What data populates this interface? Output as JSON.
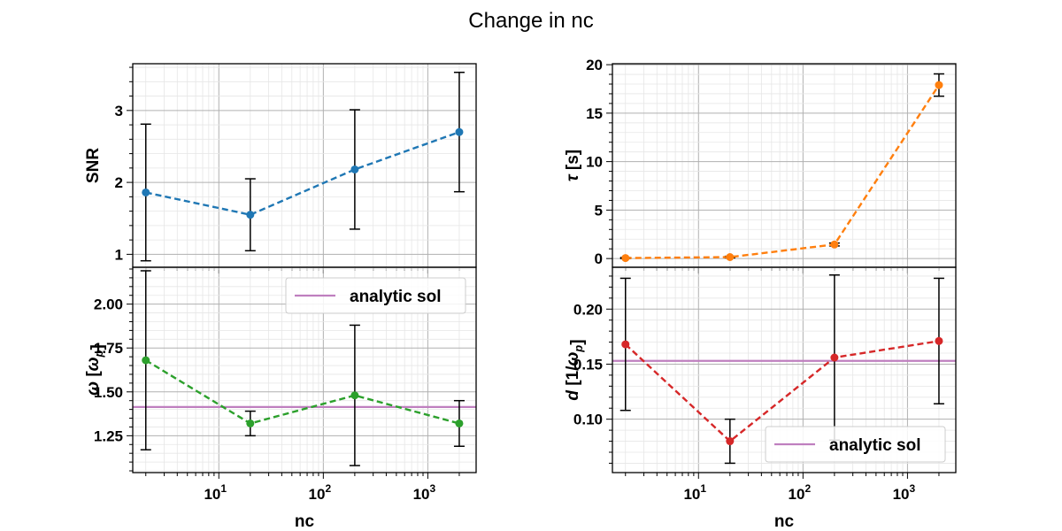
{
  "suptitle": "Change in nc",
  "chart_data": [
    {
      "type": "line",
      "id": "snr",
      "xlabel": "nc",
      "ylabel": "SNR",
      "xscale": "log",
      "xlim": [
        1.5,
        2900
      ],
      "ylim": [
        0.82,
        3.65
      ],
      "yticks": [
        1,
        2,
        3
      ],
      "ytick_labels": [
        "1",
        "2",
        "3"
      ],
      "yminor_step": 0.2,
      "show_xticklabels": false,
      "x": [
        2,
        20,
        200,
        2000
      ],
      "series": [
        {
          "values": [
            1.86,
            1.55,
            2.18,
            2.7
          ],
          "errors": [
            0.95,
            0.5,
            0.83,
            0.83
          ],
          "color": "#1f77b4"
        }
      ],
      "grid": true
    },
    {
      "type": "line",
      "id": "tau",
      "xlabel": "nc",
      "ylabel": "τ [s]",
      "xscale": "log",
      "xlim": [
        1.5,
        2900
      ],
      "ylim": [
        -0.9,
        20.1
      ],
      "yticks": [
        0,
        5,
        10,
        15,
        20
      ],
      "ytick_labels": [
        "0",
        "5",
        "10",
        "15",
        "20"
      ],
      "yminor_step": 1,
      "show_xticklabels": false,
      "x": [
        2,
        20,
        200,
        2000
      ],
      "series": [
        {
          "values": [
            0.05,
            0.15,
            1.45,
            17.9
          ],
          "errors": [
            0.05,
            0.08,
            0.15,
            1.15
          ],
          "color": "#ff7f0e"
        }
      ],
      "grid": true
    },
    {
      "type": "line",
      "id": "omega",
      "xlabel": "nc",
      "ylabel": "ω [ωp]",
      "xscale": "log",
      "xlim": [
        1.5,
        2900
      ],
      "ylim": [
        1.04,
        2.21
      ],
      "yticks": [
        1.25,
        1.5,
        1.75,
        2.0
      ],
      "ytick_labels": [
        "1.25",
        "1.50",
        "1.75",
        "2.00"
      ],
      "yminor_step": 0.05,
      "show_xticklabels": true,
      "xtick_labels": [
        "10",
        "10",
        "10"
      ],
      "xtick_exponents": [
        "1",
        "2",
        "3"
      ],
      "x": [
        2,
        20,
        200,
        2000
      ],
      "series": [
        {
          "values": [
            1.68,
            1.32,
            1.48,
            1.32
          ],
          "errors": [
            0.51,
            0.07,
            0.4,
            0.13
          ],
          "color": "#2ca02c"
        }
      ],
      "hline": {
        "value": 1.414,
        "color": "#bf7fbf",
        "label": "analytic sol"
      },
      "legend": "top-right",
      "grid": true
    },
    {
      "type": "line",
      "id": "damping",
      "xlabel": "nc",
      "ylabel": "d [1/ωp]",
      "xscale": "log",
      "xlim": [
        1.5,
        2900
      ],
      "ylim": [
        0.0515,
        0.238
      ],
      "yticks": [
        0.1,
        0.15,
        0.2
      ],
      "ytick_labels": [
        "0.10",
        "0.15",
        "0.20"
      ],
      "yminor_step": 0.01,
      "show_xticklabels": true,
      "xtick_labels": [
        "10",
        "10",
        "10"
      ],
      "xtick_exponents": [
        "1",
        "2",
        "3"
      ],
      "x": [
        2,
        20,
        200,
        2000
      ],
      "series": [
        {
          "values": [
            0.168,
            0.08,
            0.156,
            0.171
          ],
          "errors": [
            0.06,
            0.02,
            0.075,
            0.057
          ],
          "color": "#d62728"
        }
      ],
      "hline": {
        "value": 0.153,
        "color": "#bf7fbf",
        "label": "analytic sol"
      },
      "legend": "bottom-right",
      "grid": true
    }
  ]
}
